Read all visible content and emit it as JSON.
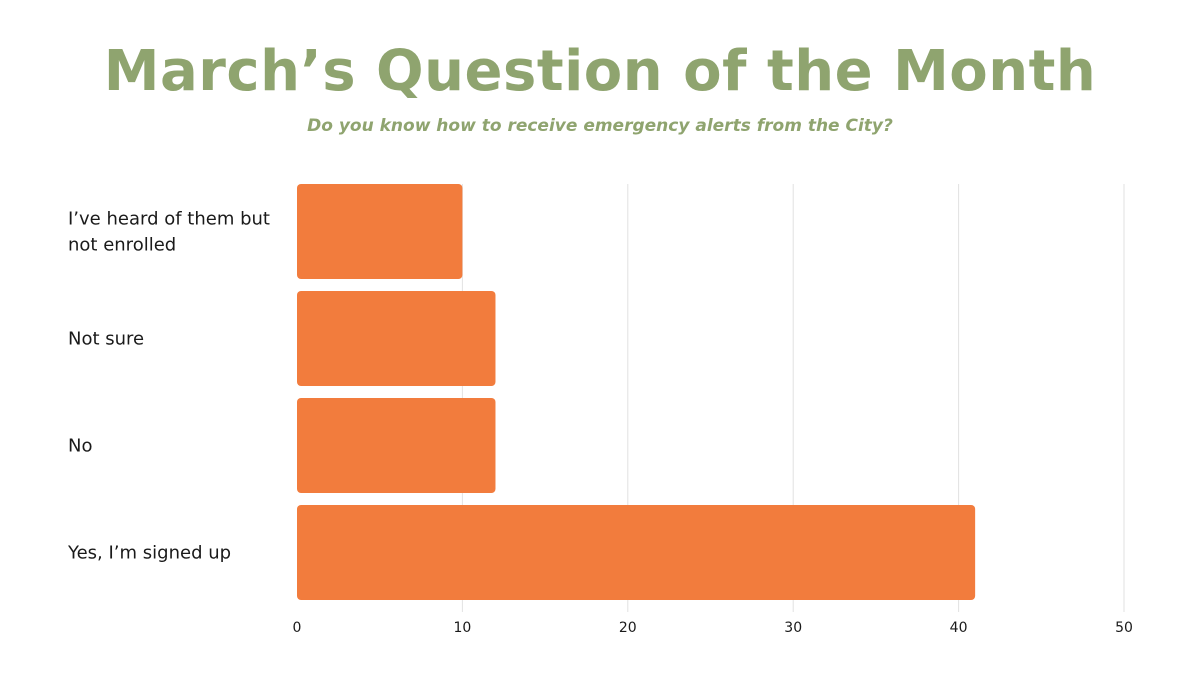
{
  "title": "March’s Question of the Month",
  "subtitle": "Do you know how to receive emergency alerts from the City?",
  "colors": {
    "title": "#8fa46f",
    "subtitle": "#8fa46f",
    "bar": "#f27c3d",
    "grid": "#e2e2e2"
  },
  "chart_data": {
    "type": "bar",
    "orientation": "horizontal",
    "categories": [
      [
        "I’ve heard of them but",
        "not enrolled"
      ],
      [
        "Not sure"
      ],
      [
        "No"
      ],
      [
        "Yes, I’m signed up"
      ]
    ],
    "values": [
      10,
      12,
      12,
      41
    ],
    "xlim": [
      0,
      50
    ],
    "xticks": [
      "0",
      "10",
      "20",
      "30",
      "40",
      "50"
    ],
    "grid": true,
    "legend": "none"
  }
}
